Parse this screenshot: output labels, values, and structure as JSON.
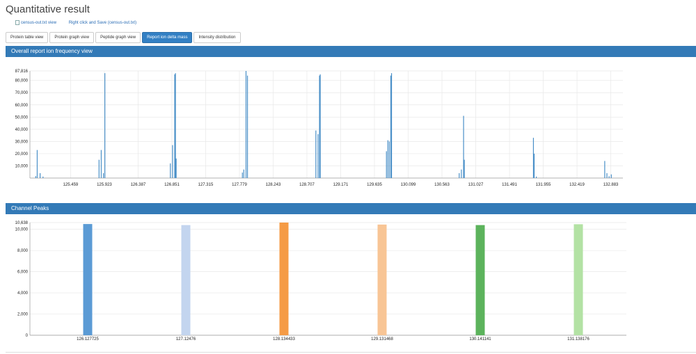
{
  "page": {
    "title": "Quantitative result"
  },
  "links": {
    "view": "census-out.txt view",
    "save": "Right click and Save (census-out.txt)"
  },
  "tabs": [
    {
      "label": "Protein table view"
    },
    {
      "label": "Protein graph view"
    },
    {
      "label": "Peptide graph view"
    },
    {
      "label": "Report ion delta mass",
      "active": true
    },
    {
      "label": "Intensity distribution"
    }
  ],
  "panels": {
    "frequency_title": "Overall report ion frequency view",
    "peaks_title": "Channel Peaks"
  },
  "chart_data": [
    {
      "type": "bar",
      "title": "Overall report ion frequency view",
      "xlabel": "",
      "ylabel": "",
      "xlim": [
        124.9,
        133.05
      ],
      "ylim": [
        0,
        87816
      ],
      "x_ticks": [
        125.459,
        125.923,
        126.387,
        126.851,
        127.315,
        127.779,
        128.243,
        128.707,
        129.171,
        129.635,
        130.099,
        130.563,
        131.027,
        131.491,
        131.955,
        132.419,
        132.883
      ],
      "y_ticks": [
        87816,
        80000,
        70000,
        60000,
        50000,
        40000,
        30000,
        20000,
        10000
      ],
      "grid": true,
      "bars": [
        {
          "x": 124.98,
          "y": 1600
        },
        {
          "x": 125.0,
          "y": 23000
        },
        {
          "x": 125.04,
          "y": 4000
        },
        {
          "x": 125.08,
          "y": 1200
        },
        {
          "x": 125.85,
          "y": 15000
        },
        {
          "x": 125.88,
          "y": 23000
        },
        {
          "x": 125.91,
          "y": 4000
        },
        {
          "x": 125.93,
          "y": 86000
        },
        {
          "x": 126.83,
          "y": 12000
        },
        {
          "x": 126.86,
          "y": 27000
        },
        {
          "x": 126.89,
          "y": 85000
        },
        {
          "x": 126.9,
          "y": 86000
        },
        {
          "x": 126.91,
          "y": 16000
        },
        {
          "x": 127.82,
          "y": 4500
        },
        {
          "x": 127.84,
          "y": 7000
        },
        {
          "x": 127.87,
          "y": 87816
        },
        {
          "x": 127.89,
          "y": 84000
        },
        {
          "x": 128.83,
          "y": 39000
        },
        {
          "x": 128.86,
          "y": 36000
        },
        {
          "x": 128.88,
          "y": 84000
        },
        {
          "x": 128.89,
          "y": 85000
        },
        {
          "x": 129.8,
          "y": 22000
        },
        {
          "x": 129.82,
          "y": 31000
        },
        {
          "x": 129.84,
          "y": 30000
        },
        {
          "x": 129.86,
          "y": 84000
        },
        {
          "x": 129.87,
          "y": 86000
        },
        {
          "x": 130.8,
          "y": 4000
        },
        {
          "x": 130.83,
          "y": 7000
        },
        {
          "x": 130.86,
          "y": 51000
        },
        {
          "x": 130.87,
          "y": 15000
        },
        {
          "x": 131.82,
          "y": 33000
        },
        {
          "x": 131.83,
          "y": 20000
        },
        {
          "x": 131.86,
          "y": 1200
        },
        {
          "x": 132.8,
          "y": 14000
        },
        {
          "x": 132.83,
          "y": 4000
        },
        {
          "x": 132.86,
          "y": 1500
        },
        {
          "x": 132.89,
          "y": 3000
        }
      ]
    },
    {
      "type": "bar",
      "title": "Channel Peaks",
      "xlabel": "",
      "ylabel": "",
      "categories": [
        "126.127725",
        "127.12476",
        "128.134433",
        "129.131468",
        "130.141141",
        "131.138176"
      ],
      "values": [
        10500,
        10400,
        10638,
        10450,
        10400,
        10480
      ],
      "colors": [
        "#5b9bd5",
        "#c3d5ef",
        "#f59b45",
        "#f8c595",
        "#5cb35c",
        "#b3e2a4"
      ],
      "ylim": [
        0,
        10638
      ],
      "y_ticks": [
        10638,
        10000,
        8000,
        6000,
        4000,
        2000,
        0
      ],
      "grid": true
    }
  ]
}
